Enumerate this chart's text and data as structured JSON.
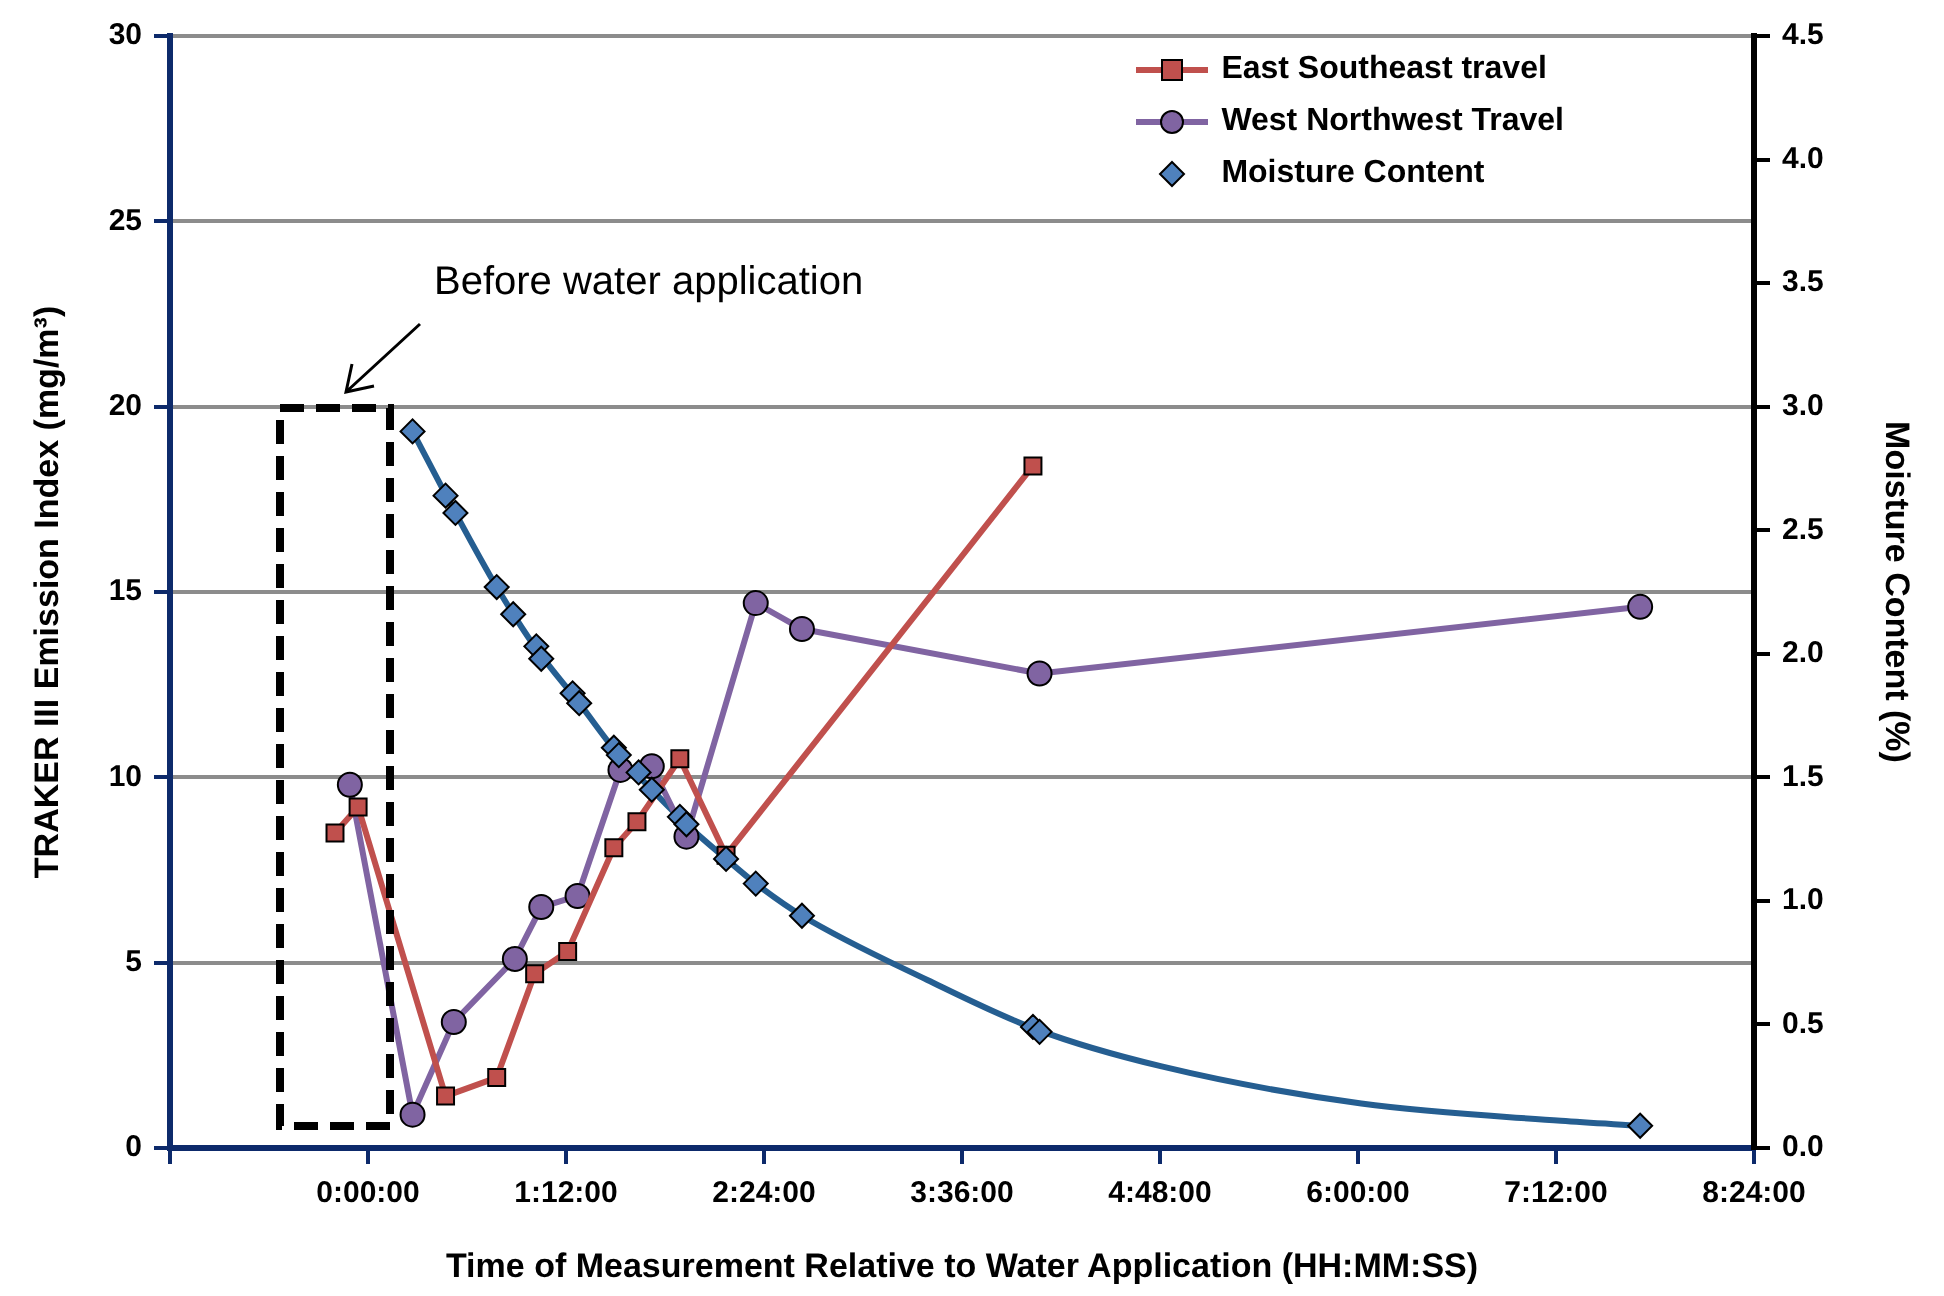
{
  "chart_data": {
    "type": "line",
    "xlabel": "Time of Measurement Relative to Water Application (HH:MM:SS)",
    "ylabel": "TRAKER III Emission Index (mg/m³)",
    "y2label": "Moisture Content (%)",
    "xlim": [
      -1.2,
      8.4
    ],
    "xticks": [
      {
        "value": -1.2,
        "label": null
      },
      {
        "value": 0,
        "label": "0:00:00"
      },
      {
        "value": 1.2,
        "label": "1:12:00"
      },
      {
        "value": 2.4,
        "label": "2:24:00"
      },
      {
        "value": 3.6,
        "label": "3:36:00"
      },
      {
        "value": 4.8,
        "label": "4:48:00"
      },
      {
        "value": 6,
        "label": "6:00:00"
      },
      {
        "value": 7.2,
        "label": "7:12:00"
      },
      {
        "value": 8.4,
        "label": "8:24:00"
      }
    ],
    "ylim": [
      0,
      30
    ],
    "yticks": [
      0,
      5,
      10,
      15,
      20,
      25,
      30
    ],
    "y2lim": [
      0,
      4.5
    ],
    "y2ticks": [
      {
        "value": 0,
        "label": "0.0"
      },
      {
        "value": 0.5,
        "label": "0.5"
      },
      {
        "value": 1,
        "label": "1.0"
      },
      {
        "value": 1.5,
        "label": "1.5"
      },
      {
        "value": 2,
        "label": "2.0"
      },
      {
        "value": 2.5,
        "label": "2.5"
      },
      {
        "value": 3,
        "label": "3.0"
      },
      {
        "value": 3.5,
        "label": "3.5"
      },
      {
        "value": 4,
        "label": "4.0"
      },
      {
        "value": 4.5,
        "label": "4.5"
      }
    ],
    "grid": "y",
    "legend": "top right",
    "annotations": [
      "Before water application"
    ],
    "series": [
      {
        "name": "East  Southeast travel",
        "marker": "square",
        "color": "#c0504d",
        "x": [
          -0.2,
          -0.06,
          0.47,
          0.78,
          1.01,
          1.21,
          1.49,
          1.63,
          1.89,
          2.17,
          4.03
        ],
        "values": [
          8.5,
          9.2,
          1.4,
          1.9,
          4.7,
          5.3,
          8.1,
          8.8,
          10.5,
          7.9,
          18.4
        ]
      },
      {
        "name": "West Northwest Travel",
        "marker": "circle",
        "color": "#8064a2",
        "x": [
          -0.11,
          0.27,
          0.52,
          0.89,
          1.05,
          1.27,
          1.53,
          1.72,
          1.93,
          2.35,
          2.63,
          4.07,
          7.71
        ],
        "values": [
          9.8,
          0.9,
          3.4,
          5.1,
          6.5,
          6.8,
          10.2,
          10.3,
          8.4,
          14.7,
          14.0,
          12.8,
          14.6
        ]
      },
      {
        "name": "Moisture Content",
        "type": "scatter",
        "marker": "diamond",
        "axis": "y2",
        "color": "#4f81bd",
        "x": [
          0.27,
          0.47,
          0.53,
          0.78,
          0.88,
          1.02,
          1.05,
          1.24,
          1.28,
          1.49,
          1.52,
          1.64,
          1.72,
          1.89,
          1.93,
          2.17,
          2.35,
          2.63,
          4.03,
          4.07,
          7.71
        ],
        "values": [
          2.9,
          2.64,
          2.57,
          2.27,
          2.16,
          2.03,
          1.98,
          1.84,
          1.8,
          1.62,
          1.59,
          1.52,
          1.45,
          1.34,
          1.31,
          1.17,
          1.07,
          0.94,
          0.49,
          0.47,
          0.09
        ]
      },
      {
        "marker": "none",
        "axis": "y2",
        "color": "#255e91",
        "x": [
          0.27,
          0.53,
          0.78,
          1.02,
          1.28,
          1.52,
          1.72,
          1.93,
          2.17,
          2.35,
          2.63,
          3.39,
          4.05,
          4.81,
          6.02,
          7.23,
          7.71
        ],
        "values": [
          2.9,
          2.57,
          2.27,
          2.02,
          1.8,
          1.59,
          1.45,
          1.31,
          1.17,
          1.07,
          0.94,
          0.68,
          0.48,
          0.33,
          0.18,
          0.11,
          0.09
        ]
      }
    ]
  }
}
